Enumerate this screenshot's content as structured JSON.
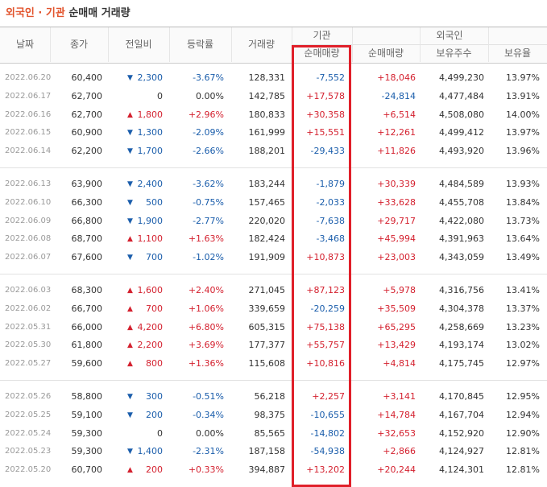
{
  "header": {
    "title_highlight": "외국인 · 기관",
    "title_rest": "순매매 거래량"
  },
  "table": {
    "columns": [
      "날짜",
      "종가",
      "전일비",
      "등락률",
      "거래량"
    ],
    "group_institution": "기관",
    "group_foreign": "외국인",
    "subcolumns": [
      "순매매량",
      "순매매량",
      "보유주수",
      "보유율"
    ],
    "groups": [
      [
        [
          "2022.06.20",
          "60,400",
          "2,300",
          "-3.67%",
          "128,331",
          "-7,552",
          "+18,046",
          "4,499,230",
          "13.97%"
        ],
        [
          "2022.06.17",
          "62,700",
          "0",
          "0.00%",
          "142,785",
          "+17,578",
          "-24,814",
          "4,477,484",
          "13.91%"
        ],
        [
          "2022.06.16",
          "62,700",
          "1,800",
          "+2.96%",
          "180,833",
          "+30,358",
          "+6,514",
          "4,508,080",
          "14.00%"
        ],
        [
          "2022.06.15",
          "60,900",
          "1,300",
          "-2.09%",
          "161,999",
          "+15,551",
          "+12,261",
          "4,499,412",
          "13.97%"
        ],
        [
          "2022.06.14",
          "62,200",
          "1,700",
          "-2.66%",
          "188,201",
          "-29,433",
          "+11,826",
          "4,493,920",
          "13.96%"
        ]
      ],
      [
        [
          "2022.06.13",
          "63,900",
          "2,400",
          "-3.62%",
          "183,244",
          "-1,879",
          "+30,339",
          "4,484,589",
          "13.93%"
        ],
        [
          "2022.06.10",
          "66,300",
          "500",
          "-0.75%",
          "157,465",
          "-2,033",
          "+33,628",
          "4,455,708",
          "13.84%"
        ],
        [
          "2022.06.09",
          "66,800",
          "1,900",
          "-2.77%",
          "220,020",
          "-7,638",
          "+29,717",
          "4,422,080",
          "13.73%"
        ],
        [
          "2022.06.08",
          "68,700",
          "1,100",
          "+1.63%",
          "182,424",
          "-3,468",
          "+45,994",
          "4,391,963",
          "13.64%"
        ],
        [
          "2022.06.07",
          "67,600",
          "700",
          "-1.02%",
          "191,909",
          "+10,873",
          "+23,003",
          "4,343,059",
          "13.49%"
        ]
      ],
      [
        [
          "2022.06.03",
          "68,300",
          "1,600",
          "+2.40%",
          "271,045",
          "+87,123",
          "+5,978",
          "4,316,756",
          "13.41%"
        ],
        [
          "2022.06.02",
          "66,700",
          "700",
          "+1.06%",
          "339,659",
          "-20,259",
          "+35,509",
          "4,304,378",
          "13.37%"
        ],
        [
          "2022.05.31",
          "66,000",
          "4,200",
          "+6.80%",
          "605,315",
          "+75,138",
          "+65,295",
          "4,258,669",
          "13.23%"
        ],
        [
          "2022.05.30",
          "61,800",
          "2,200",
          "+3.69%",
          "177,377",
          "+55,757",
          "+13,429",
          "4,193,174",
          "13.02%"
        ],
        [
          "2022.05.27",
          "59,600",
          "800",
          "+1.36%",
          "115,608",
          "+10,816",
          "+4,814",
          "4,175,745",
          "12.97%"
        ]
      ],
      [
        [
          "2022.05.26",
          "58,800",
          "300",
          "-0.51%",
          "56,218",
          "+2,257",
          "+3,141",
          "4,170,845",
          "12.95%"
        ],
        [
          "2022.05.25",
          "59,100",
          "200",
          "-0.34%",
          "98,375",
          "-10,655",
          "+14,784",
          "4,167,704",
          "12.94%"
        ],
        [
          "2022.05.24",
          "59,300",
          "0",
          "0.00%",
          "85,565",
          "-14,802",
          "+32,653",
          "4,152,920",
          "12.90%"
        ],
        [
          "2022.05.23",
          "59,300",
          "1,400",
          "-2.31%",
          "187,158",
          "-54,938",
          "+2,866",
          "4,124,927",
          "12.81%"
        ],
        [
          "2022.05.20",
          "60,700",
          "200",
          "+0.33%",
          "394,887",
          "+13,202",
          "+20,244",
          "4,124,301",
          "12.81%"
        ]
      ]
    ]
  }
}
